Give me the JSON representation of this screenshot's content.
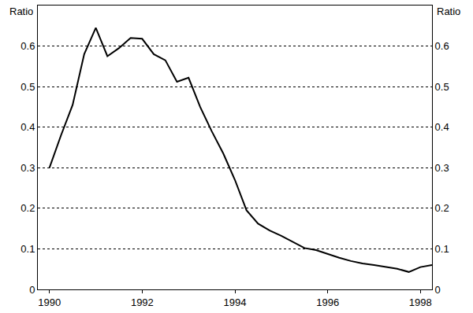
{
  "chart_data": {
    "type": "line",
    "y_label": "Ratio",
    "x": [
      1990.0,
      1990.25,
      1990.5,
      1990.75,
      1991.0,
      1991.25,
      1991.5,
      1991.75,
      1992.0,
      1992.25,
      1992.5,
      1992.75,
      1993.0,
      1993.25,
      1993.5,
      1993.75,
      1994.0,
      1994.25,
      1994.5,
      1994.75,
      1995.0,
      1995.25,
      1995.5,
      1995.75,
      1996.0,
      1996.25,
      1996.5,
      1996.75,
      1997.0,
      1997.25,
      1997.5,
      1997.75,
      1998.0,
      1998.25
    ],
    "values": [
      0.3,
      0.38,
      0.455,
      0.58,
      0.645,
      0.575,
      0.595,
      0.62,
      0.618,
      0.58,
      0.565,
      0.512,
      0.522,
      0.45,
      0.39,
      0.335,
      0.27,
      0.195,
      0.162,
      0.145,
      0.132,
      0.117,
      0.102,
      0.097,
      0.087,
      0.078,
      0.07,
      0.064,
      0.06,
      0.056,
      0.051,
      0.043,
      0.055,
      0.06
    ],
    "color": "#000000",
    "xlim": [
      1989.75,
      1998.25
    ],
    "xticks": [
      1990,
      1992,
      1994,
      1996,
      1998
    ],
    "ylim": [
      0,
      0.7
    ],
    "yticks": [
      0,
      0.1,
      0.2,
      0.3,
      0.4,
      0.5,
      0.6
    ],
    "grid": true,
    "line_style": "solid"
  }
}
